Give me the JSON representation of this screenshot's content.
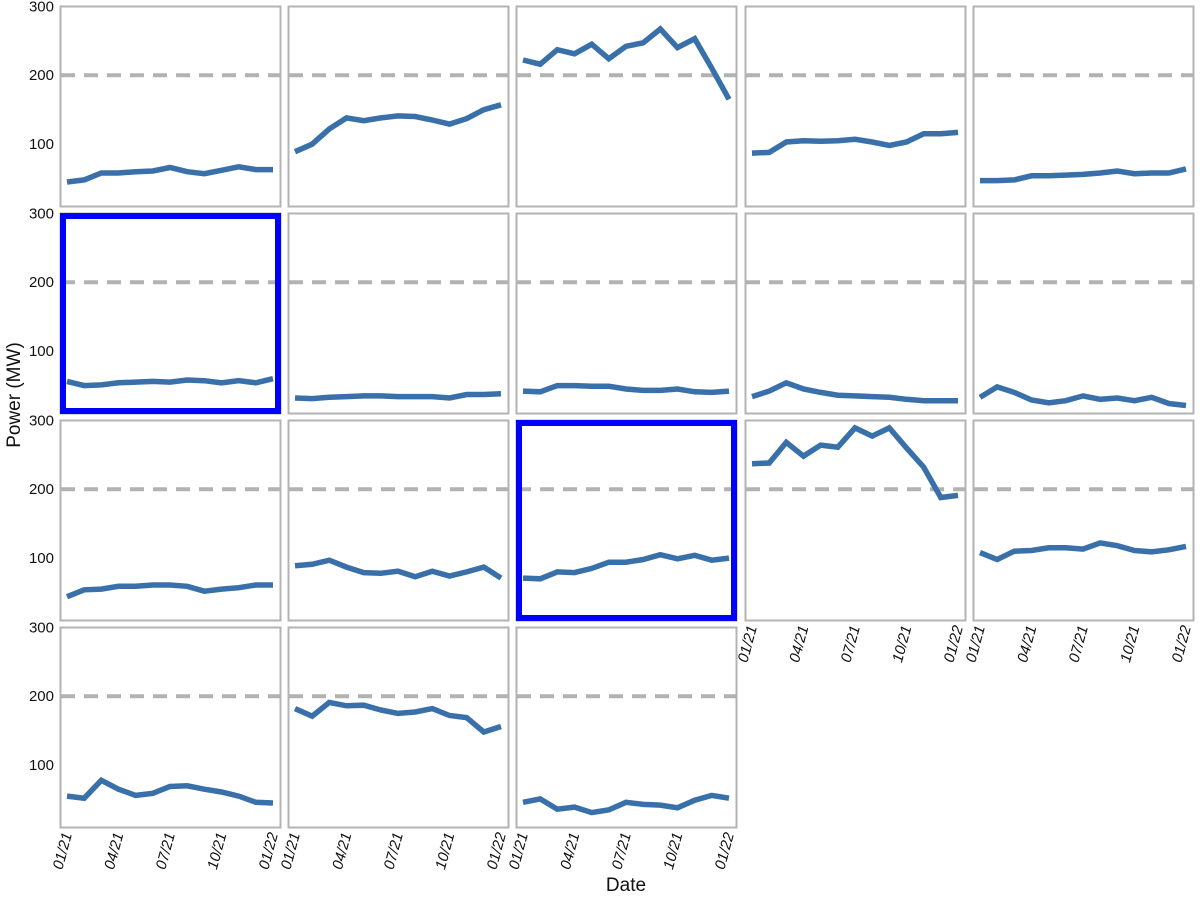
{
  "chart_data": {
    "type": "line",
    "xlabel": "Date",
    "ylabel": "Power (MW)",
    "ylim": [
      0,
      300
    ],
    "y_ticks": [
      "100",
      "200",
      "300"
    ],
    "x_tick_labels": [
      "01/21",
      "04/21",
      "07/21",
      "10/21",
      "01/22"
    ],
    "x": [
      "01/21",
      "02/21",
      "03/21",
      "04/21",
      "05/21",
      "06/21",
      "07/21",
      "08/21",
      "09/21",
      "10/21",
      "11/21",
      "12/21",
      "01/22"
    ],
    "reference_line": 200,
    "grid": false,
    "colors": {
      "line": "#3a70a9",
      "reference": "#b2b2b2",
      "highlight": "#0000ff",
      "frame": "#b3b3b3"
    },
    "panels": [
      {
        "values": [
          45,
          48,
          58,
          58,
          60,
          61,
          66,
          60,
          57,
          62,
          67,
          63,
          63
        ]
      },
      {
        "values": [
          89,
          100,
          122,
          138,
          134,
          138,
          141,
          140,
          135,
          129,
          137,
          150,
          157
        ]
      },
      {
        "values": [
          222,
          216,
          237,
          231,
          245,
          224,
          242,
          247,
          267,
          240,
          253,
          210,
          165
        ]
      },
      {
        "values": [
          87,
          88,
          103,
          105,
          104,
          105,
          107,
          103,
          98,
          103,
          115,
          115,
          117
        ]
      },
      {
        "values": [
          47,
          47,
          48,
          54,
          54,
          55,
          56,
          58,
          61,
          57,
          58,
          58,
          64
        ]
      },
      {
        "values": [
          56,
          50,
          51,
          54,
          55,
          56,
          55,
          58,
          57,
          54,
          57,
          54,
          60
        ],
        "highlighted": true
      },
      {
        "values": [
          32,
          31,
          33,
          34,
          35,
          35,
          34,
          34,
          34,
          32,
          37,
          37,
          38
        ]
      },
      {
        "values": [
          42,
          41,
          50,
          50,
          49,
          49,
          45,
          43,
          43,
          45,
          41,
          40,
          42
        ]
      },
      {
        "values": [
          34,
          42,
          54,
          45,
          40,
          36,
          35,
          34,
          33,
          30,
          28,
          28,
          28
        ]
      },
      {
        "values": [
          33,
          48,
          40,
          29,
          25,
          28,
          35,
          30,
          32,
          28,
          33,
          24,
          21
        ]
      },
      {
        "values": [
          44,
          54,
          55,
          59,
          59,
          61,
          61,
          59,
          52,
          55,
          57,
          61,
          61
        ]
      },
      {
        "values": [
          89,
          91,
          97,
          87,
          79,
          78,
          81,
          73,
          81,
          74,
          80,
          87,
          71
        ]
      },
      {
        "values": [
          71,
          70,
          80,
          79,
          85,
          94,
          94,
          98,
          105,
          99,
          104,
          97,
          100
        ],
        "highlighted": true
      },
      {
        "values": [
          237,
          238,
          268,
          248,
          264,
          261,
          289,
          277,
          289,
          260,
          232,
          188,
          191
        ]
      },
      {
        "values": [
          108,
          98,
          110,
          111,
          115,
          115,
          113,
          122,
          118,
          111,
          109,
          112,
          117
        ]
      },
      {
        "values": [
          55,
          52,
          78,
          65,
          56,
          59,
          69,
          70,
          65,
          61,
          55,
          46,
          45
        ]
      },
      {
        "values": [
          182,
          171,
          191,
          186,
          187,
          180,
          175,
          177,
          182,
          172,
          169,
          148,
          156
        ]
      },
      {
        "values": [
          46,
          51,
          36,
          39,
          31,
          35,
          46,
          43,
          42,
          38,
          49,
          56,
          52
        ]
      }
    ]
  }
}
